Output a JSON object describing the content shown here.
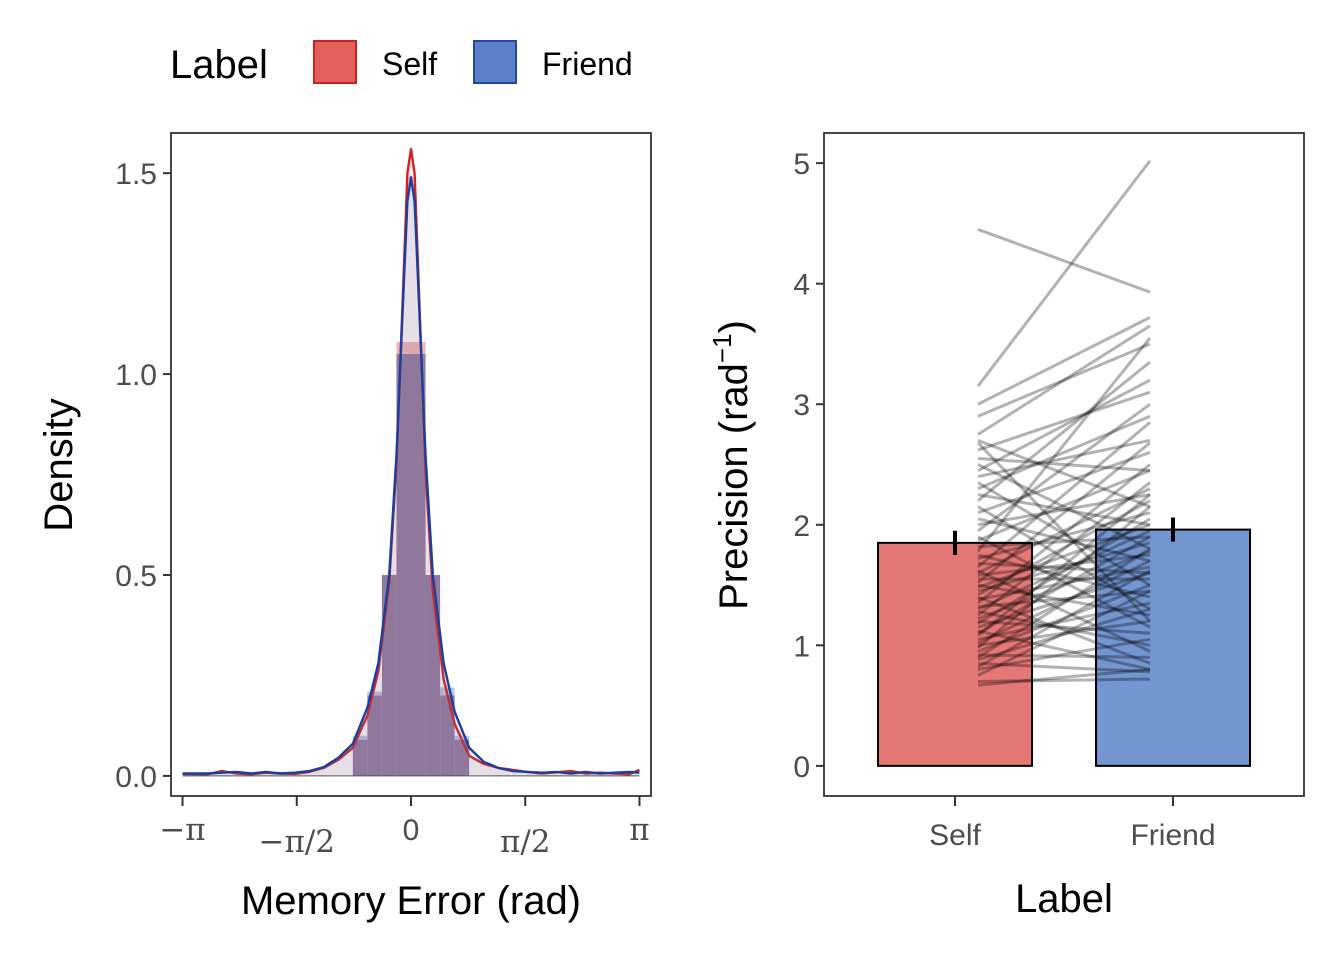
{
  "legend": {
    "title": "Label",
    "entries": [
      {
        "label": "Self",
        "fill": "#e0605e",
        "stroke": "#cc1f1f"
      },
      {
        "label": "Friend",
        "fill": "#5b82c8",
        "stroke": "#1f49a0"
      }
    ]
  },
  "colors": {
    "self_fill": "#e0605e",
    "self_line": "#d42020",
    "friend_fill": "#5b82c8",
    "friend_line": "#1a3f9c",
    "overlap_fill": "#8f7aa0",
    "pair_line": "#000000"
  },
  "chart_data": [
    {
      "type": "histogram-density",
      "xlabel": "Memory Error (rad)",
      "ylabel": "Density",
      "xlim": [
        -3.3,
        3.3
      ],
      "ylim": [
        -0.05,
        1.6
      ],
      "x_ticks": [
        -3.14159,
        -1.5708,
        0,
        1.5708,
        3.14159
      ],
      "x_tick_labels": [
        "−π",
        "−π/2",
        "0",
        "π/2",
        "π"
      ],
      "y_ticks": [
        0.0,
        0.5,
        1.0,
        1.5
      ],
      "y_tick_labels": [
        "0.0",
        "0.5",
        "1.0",
        "1.5"
      ],
      "bin_width": 0.2,
      "hist_bins": [
        {
          "x0": -0.8,
          "x1": -0.6,
          "self": 0.09,
          "friend": 0.1
        },
        {
          "x0": -0.6,
          "x1": -0.4,
          "self": 0.2,
          "friend": 0.21
        },
        {
          "x0": -0.4,
          "x1": -0.2,
          "self": 0.5,
          "friend": 0.5
        },
        {
          "x0": -0.2,
          "x1": 0.0,
          "self": 1.08,
          "friend": 1.05
        },
        {
          "x0": 0.0,
          "x1": 0.2,
          "self": 1.08,
          "friend": 1.05
        },
        {
          "x0": 0.2,
          "x1": 0.4,
          "self": 0.5,
          "friend": 0.5
        },
        {
          "x0": 0.4,
          "x1": 0.6,
          "self": 0.2,
          "friend": 0.22
        },
        {
          "x0": 0.6,
          "x1": 0.8,
          "self": 0.09,
          "friend": 0.1
        }
      ],
      "density": {
        "x": [
          -3.14,
          -2.8,
          -2.6,
          -2.4,
          -2.2,
          -2.0,
          -1.8,
          -1.6,
          -1.4,
          -1.2,
          -1.0,
          -0.8,
          -0.6,
          -0.45,
          -0.3,
          -0.2,
          -0.1,
          -0.05,
          0.0,
          0.05,
          0.1,
          0.2,
          0.3,
          0.45,
          0.6,
          0.8,
          1.0,
          1.2,
          1.4,
          1.6,
          1.8,
          2.0,
          2.2,
          2.4,
          2.6,
          2.8,
          3.0,
          3.14
        ],
        "series": [
          {
            "name": "Self",
            "values": [
              0.005,
              0.004,
              0.012,
              0.006,
              0.004,
              0.008,
              0.006,
              0.005,
              0.01,
              0.02,
              0.04,
              0.07,
              0.15,
              0.26,
              0.48,
              0.78,
              1.25,
              1.5,
              1.56,
              1.5,
              1.25,
              0.76,
              0.46,
              0.24,
              0.13,
              0.05,
              0.03,
              0.02,
              0.015,
              0.01,
              0.006,
              0.009,
              0.012,
              0.006,
              0.008,
              0.006,
              0.004,
              0.015
            ]
          },
          {
            "name": "Friend",
            "values": [
              0.006,
              0.006,
              0.008,
              0.01,
              0.006,
              0.01,
              0.006,
              0.008,
              0.012,
              0.022,
              0.045,
              0.08,
              0.17,
              0.28,
              0.5,
              0.8,
              1.22,
              1.43,
              1.49,
              1.43,
              1.22,
              0.8,
              0.5,
              0.28,
              0.16,
              0.07,
              0.035,
              0.02,
              0.012,
              0.01,
              0.008,
              0.01,
              0.006,
              0.01,
              0.006,
              0.008,
              0.01,
              0.008
            ]
          }
        ]
      }
    },
    {
      "type": "bar",
      "xlabel": "Label",
      "ylabel_main": "Precision (rad",
      "ylabel_sup": "−1",
      "ylabel_close": ")",
      "categories": [
        "Self",
        "Friend"
      ],
      "values": [
        1.85,
        1.96
      ],
      "error": [
        0.1,
        0.1
      ],
      "ylim": [
        -0.25,
        5.25
      ],
      "y_ticks": [
        0,
        1,
        2,
        3,
        4,
        5
      ],
      "y_tick_labels": [
        "0",
        "1",
        "2",
        "3",
        "4",
        "5"
      ],
      "paired_lines": [
        [
          4.45,
          3.93
        ],
        [
          3.15,
          5.02
        ],
        [
          3.0,
          3.72
        ],
        [
          2.9,
          3.5
        ],
        [
          2.75,
          3.65
        ],
        [
          2.7,
          2.15
        ],
        [
          2.68,
          1.2
        ],
        [
          2.62,
          3.1
        ],
        [
          2.55,
          2.45
        ],
        [
          2.5,
          1.8
        ],
        [
          2.45,
          3.2
        ],
        [
          2.4,
          2.7
        ],
        [
          2.35,
          1.5
        ],
        [
          2.3,
          2.9
        ],
        [
          2.25,
          2.0
        ],
        [
          2.2,
          3.35
        ],
        [
          2.15,
          1.3
        ],
        [
          2.1,
          2.6
        ],
        [
          2.05,
          1.7
        ],
        [
          2.0,
          2.25
        ],
        [
          1.95,
          3.0
        ],
        [
          1.9,
          1.15
        ],
        [
          1.87,
          2.45
        ],
        [
          1.82,
          1.9
        ],
        [
          1.78,
          3.55
        ],
        [
          1.75,
          1.4
        ],
        [
          1.72,
          2.1
        ],
        [
          1.68,
          1.6
        ],
        [
          1.65,
          2.85
        ],
        [
          1.62,
          0.95
        ],
        [
          1.6,
          2.3
        ],
        [
          1.58,
          1.75
        ],
        [
          1.55,
          1.55
        ],
        [
          1.52,
          2.68
        ],
        [
          1.5,
          1.25
        ],
        [
          1.48,
          2.0
        ],
        [
          1.45,
          1.85
        ],
        [
          1.42,
          2.2
        ],
        [
          1.4,
          0.85
        ],
        [
          1.38,
          1.65
        ],
        [
          1.35,
          2.5
        ],
        [
          1.32,
          1.45
        ],
        [
          1.3,
          1.95
        ],
        [
          1.28,
          1.0
        ],
        [
          1.25,
          2.35
        ],
        [
          1.22,
          1.78
        ],
        [
          1.2,
          1.1
        ],
        [
          1.18,
          2.05
        ],
        [
          1.15,
          1.6
        ],
        [
          1.12,
          0.8
        ],
        [
          1.1,
          1.9
        ],
        [
          1.08,
          2.25
        ],
        [
          1.05,
          1.35
        ],
        [
          1.02,
          1.7
        ],
        [
          1.0,
          1.2
        ],
        [
          0.98,
          2.15
        ],
        [
          0.95,
          1.5
        ],
        [
          0.92,
          0.9
        ],
        [
          0.9,
          1.8
        ],
        [
          0.88,
          1.3
        ],
        [
          0.85,
          0.78
        ],
        [
          0.82,
          1.62
        ],
        [
          0.8,
          1.05
        ],
        [
          0.75,
          1.45
        ],
        [
          0.7,
          0.72
        ],
        [
          0.67,
          0.8
        ]
      ]
    }
  ]
}
